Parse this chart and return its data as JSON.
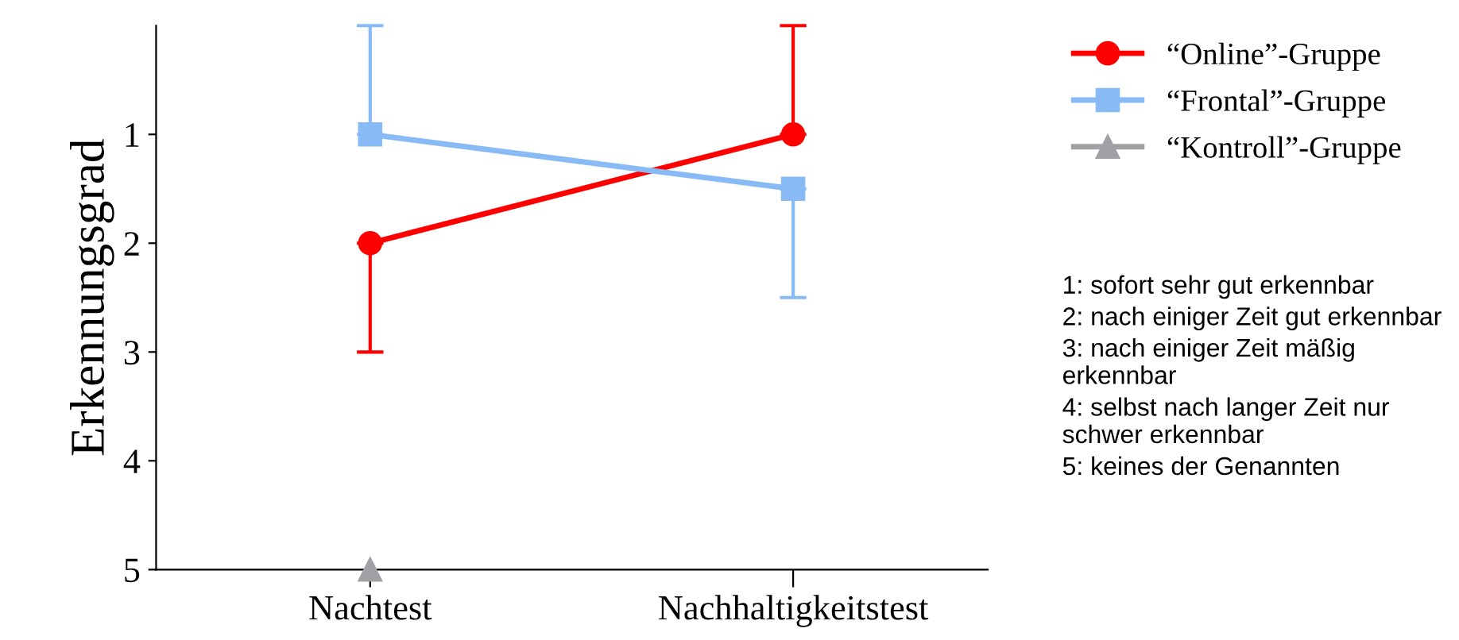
{
  "chart_data": {
    "type": "line",
    "ylabel": "Erkennungsgrad",
    "categories": [
      "Nachtest",
      "Nachhaltigkeitstest"
    ],
    "ylim": [
      5,
      0
    ],
    "yticks": [
      1,
      2,
      3,
      4,
      5
    ],
    "grid": false,
    "legend": "top right",
    "series": [
      {
        "name": "“Online”-Gruppe",
        "color": "#ff0000",
        "marker": "circle",
        "values": [
          2,
          1
        ],
        "errors": [
          [
            2,
            3
          ],
          [
            0,
            1
          ]
        ]
      },
      {
        "name": "“Frontal”-Gruppe",
        "color": "#88bbf5",
        "marker": "square",
        "values": [
          1,
          1.5
        ],
        "errors": [
          [
            0,
            1
          ],
          [
            1.5,
            2.5
          ]
        ]
      },
      {
        "name": "“Kontroll”-Gruppe",
        "color": "#a0a0a5",
        "marker": "triangle",
        "values": [
          5,
          null
        ]
      }
    ],
    "annotations": [
      "1: sofort sehr gut erkennbar",
      "2: nach einiger Zeit gut erkennbar",
      "3: nach einiger Zeit mäßig erkennbar",
      "4: selbst nach langer Zeit nur schwer erkennbar",
      "5: keines der Genannten"
    ]
  }
}
